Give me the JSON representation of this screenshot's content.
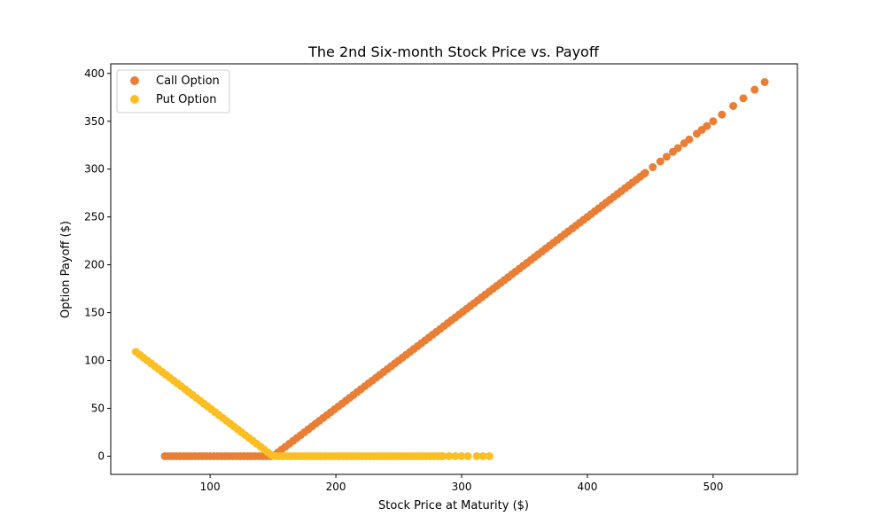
{
  "chart_data": {
    "type": "scatter",
    "title": "The 2nd Six-month Stock Price vs. Payoff",
    "xlabel": "Stock Price at Maturity ($)",
    "ylabel": "Option Payoff ($)",
    "xlim": [
      21,
      567
    ],
    "ylim": [
      -19,
      410
    ],
    "xticks": [
      100,
      200,
      300,
      400,
      500
    ],
    "yticks": [
      0,
      50,
      100,
      150,
      200,
      250,
      300,
      350,
      400
    ],
    "grid": false,
    "legend_position": "top-left",
    "series": [
      {
        "name": "Call Option",
        "color": "#E97F36",
        "strike": 150,
        "x_range": [
          64,
          541
        ],
        "extra_x": [
          446,
          452,
          458,
          463,
          468,
          472,
          477,
          481,
          487,
          491,
          495,
          500,
          507,
          516,
          524,
          533,
          541
        ],
        "points_step": 3
      },
      {
        "name": "Put Option",
        "color": "#FBBF24",
        "strike": 150,
        "x_range": [
          41,
          322
        ],
        "extra_x": [
          285,
          290,
          295,
          300,
          305,
          312,
          317,
          322
        ],
        "points_step": 3
      }
    ]
  }
}
